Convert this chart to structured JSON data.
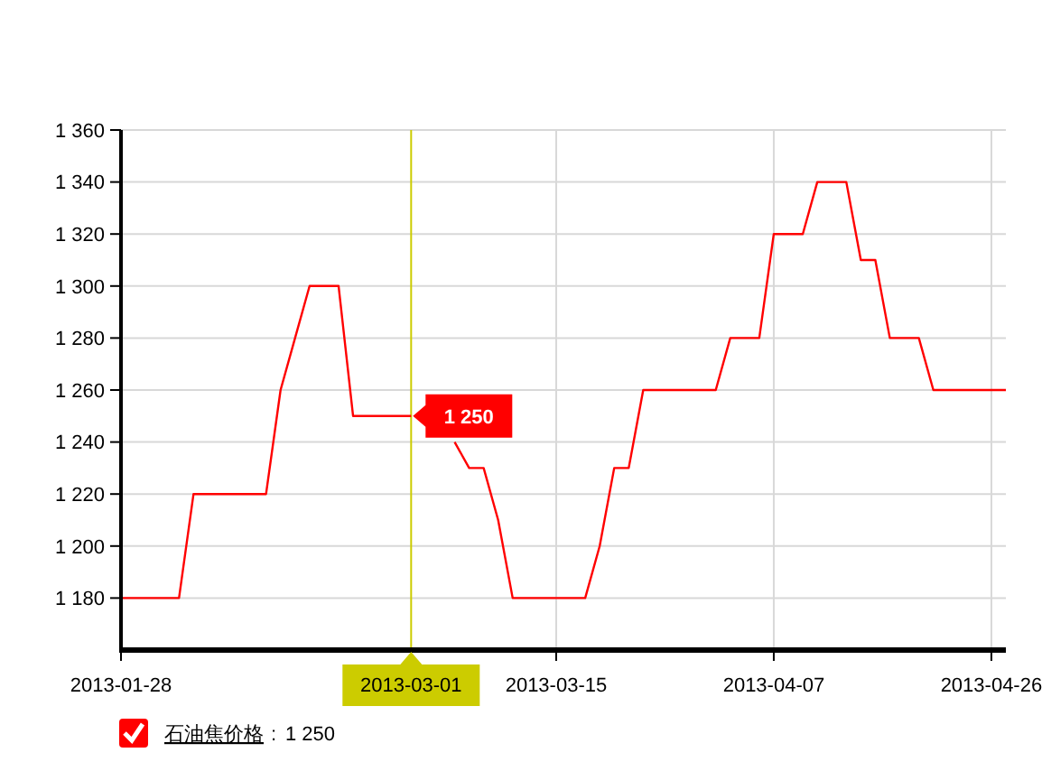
{
  "chart_data": {
    "type": "line",
    "categories": [
      "2013-01-28",
      null,
      null,
      null,
      null,
      null,
      null,
      null,
      null,
      null,
      null,
      null,
      null,
      null,
      null,
      null,
      null,
      null,
      null,
      null,
      "2013-03-01",
      null,
      null,
      null,
      null,
      null,
      null,
      null,
      null,
      null,
      "2013-03-15",
      null,
      null,
      null,
      null,
      null,
      null,
      null,
      null,
      null,
      null,
      null,
      null,
      null,
      null,
      "2013-04-07",
      null,
      null,
      null,
      null,
      null,
      null,
      null,
      null,
      null,
      null,
      null,
      null,
      null,
      null,
      "2013-04-26",
      null
    ],
    "series": [
      {
        "name": "石油焦价格",
        "color": "#ff0000",
        "values": [
          1180,
          1180,
          1180,
          1180,
          1180,
          1220,
          1220,
          1220,
          1220,
          1220,
          1220,
          1260,
          1280,
          1300,
          1300,
          1300,
          1250,
          1250,
          1250,
          1250,
          1250,
          null,
          null,
          1240,
          1230,
          1230,
          1210,
          1180,
          1180,
          1180,
          1180,
          1180,
          1180,
          1200,
          1230,
          1230,
          1260,
          1260,
          1260,
          1260,
          1260,
          1260,
          1280,
          1280,
          1280,
          1320,
          1320,
          1320,
          1340,
          1340,
          1340,
          1310,
          1310,
          1280,
          1280,
          1280,
          1260,
          1260,
          1260,
          1260,
          1260,
          1260
        ]
      }
    ],
    "ylim": [
      1160,
      1360
    ],
    "yticks": [
      {
        "value": 1180,
        "label": "1 180"
      },
      {
        "value": 1200,
        "label": "1 200"
      },
      {
        "value": 1220,
        "label": "1 220"
      },
      {
        "value": 1240,
        "label": "1 240"
      },
      {
        "value": 1260,
        "label": "1 260"
      },
      {
        "value": 1280,
        "label": "1 280"
      },
      {
        "value": 1300,
        "label": "1 300"
      },
      {
        "value": 1320,
        "label": "1 320"
      },
      {
        "value": 1340,
        "label": "1 340"
      },
      {
        "value": 1360,
        "label": "1 360"
      }
    ],
    "grid": true,
    "legend": "bottom left",
    "marker": "none",
    "annotations": [
      ":"
    ],
    "ref_lines": [
      {
        "axis": "x",
        "value": "2013-03-01",
        "label": "1 250",
        "color": "#cccc00"
      }
    ]
  }
}
